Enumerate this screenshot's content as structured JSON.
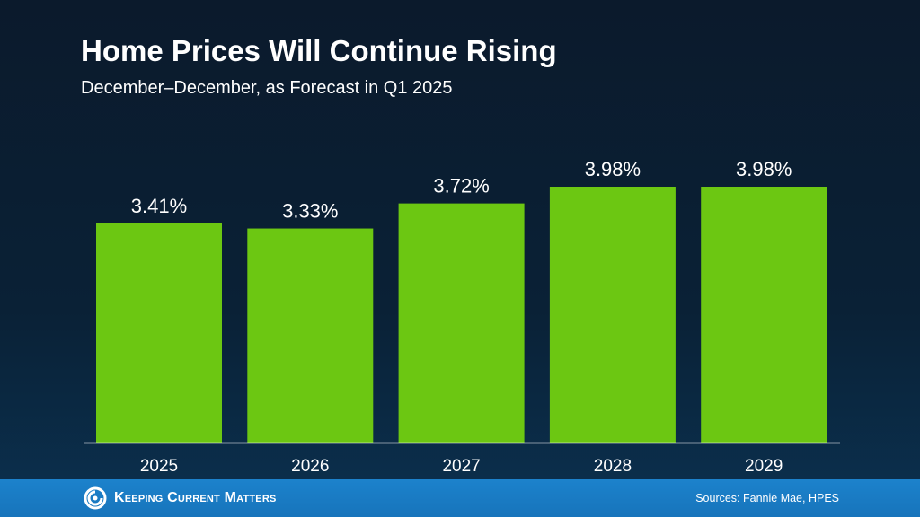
{
  "chart_data": {
    "type": "bar",
    "title": "Home Prices Will Continue Rising",
    "subtitle": "December–December, as Forecast in Q1 2025",
    "categories": [
      "2025",
      "2026",
      "2027",
      "2028",
      "2029"
    ],
    "values": [
      3.41,
      3.33,
      3.72,
      3.98,
      3.98
    ],
    "data_labels": [
      "3.41%",
      "3.33%",
      "3.72%",
      "3.98%",
      "3.98%"
    ],
    "ylim": [
      0,
      3.98
    ],
    "grid": false,
    "bar_color": "#6cc712",
    "xlabel": "",
    "ylabel": ""
  },
  "footer": {
    "brand": "Keeping Current Matters",
    "sources": "Sources: Fannie Mae, HPES",
    "color": "#1a7cc4"
  }
}
